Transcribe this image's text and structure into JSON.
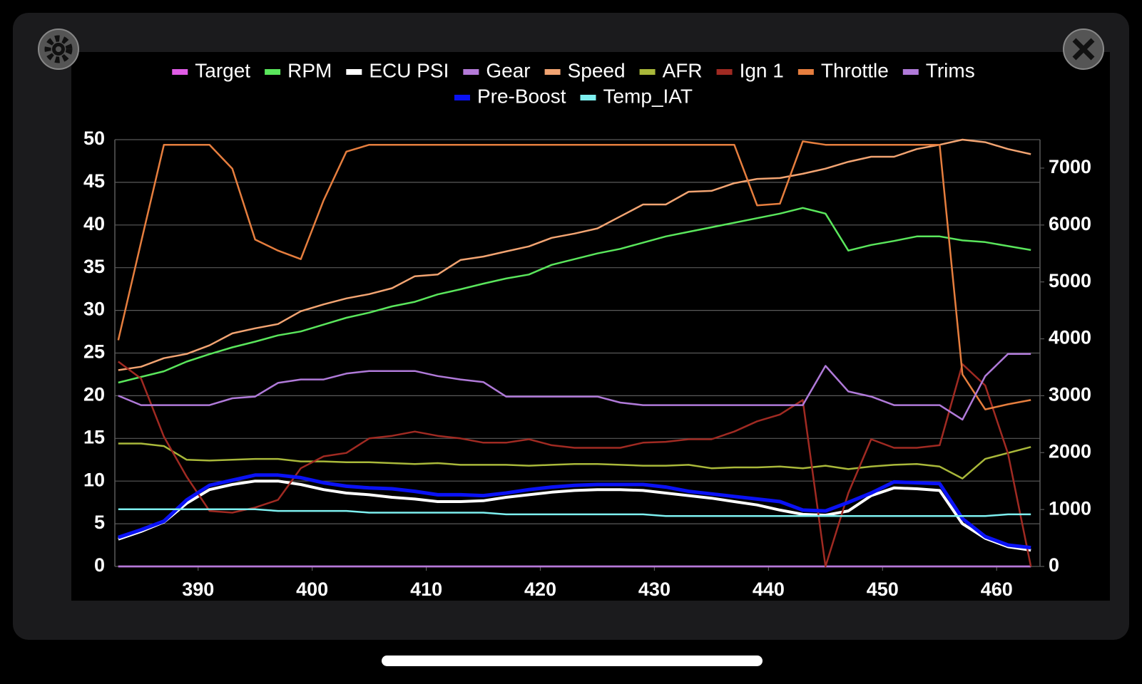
{
  "chart_data": {
    "type": "line",
    "x": [
      383,
      385,
      387,
      389,
      391,
      393,
      395,
      397,
      399,
      401,
      403,
      405,
      407,
      409,
      411,
      413,
      415,
      417,
      419,
      421,
      423,
      425,
      427,
      429,
      431,
      433,
      435,
      437,
      439,
      441,
      443,
      445,
      447,
      449,
      451,
      453,
      455,
      457,
      459,
      461,
      463
    ],
    "xlim": [
      382.7,
      463.8
    ],
    "xticks": [
      390,
      400,
      410,
      420,
      430,
      440,
      450,
      460
    ],
    "ylim": [
      0,
      50
    ],
    "yticks": [
      0,
      5,
      10,
      15,
      20,
      25,
      30,
      35,
      40,
      45,
      50
    ],
    "y2lim": [
      0,
      7500
    ],
    "y2ticks": [
      0,
      1000,
      2000,
      3000,
      4000,
      5000,
      6000,
      7000
    ],
    "grid": true,
    "legend": "top",
    "series": [
      {
        "name": "Target",
        "color": "#e05ce6",
        "values": [
          0,
          0,
          0,
          0,
          0,
          0,
          0,
          0,
          0,
          0,
          0,
          0,
          0,
          0,
          0,
          0,
          0,
          0,
          0,
          0,
          0,
          0,
          0,
          0,
          0,
          0,
          0,
          0,
          0,
          0,
          0,
          0,
          0,
          0,
          0,
          0,
          0,
          0,
          0,
          0,
          0
        ]
      },
      {
        "name": "RPM",
        "color": "#5ae65c",
        "axis": "y2",
        "values": [
          3230,
          3330,
          3430,
          3600,
          3730,
          3850,
          3950,
          4060,
          4130,
          4250,
          4370,
          4460,
          4570,
          4650,
          4780,
          4870,
          4970,
          5060,
          5130,
          5300,
          5400,
          5500,
          5580,
          5690,
          5800,
          5880,
          5960,
          6040,
          6120,
          6200,
          6300,
          6200,
          5550,
          5650,
          5720,
          5800,
          5800,
          5730,
          5700,
          5630,
          5560
        ]
      },
      {
        "name": "ECU PSI",
        "color": "#ffffff",
        "values": [
          3.2,
          4.1,
          5.2,
          7.4,
          9.0,
          9.6,
          10.0,
          10.0,
          9.6,
          9.0,
          8.6,
          8.4,
          8.1,
          7.9,
          7.6,
          7.6,
          7.7,
          8.1,
          8.4,
          8.7,
          8.9,
          9.0,
          9.0,
          8.9,
          8.6,
          8.3,
          8.0,
          7.6,
          7.2,
          6.6,
          6.1,
          6.0,
          6.5,
          8.3,
          9.2,
          9.1,
          8.9,
          5.0,
          3.3,
          2.3,
          1.9
        ]
      },
      {
        "name": "Gear",
        "color": "#b47ad8",
        "values": [
          0,
          0,
          0,
          0,
          0,
          0,
          0,
          0,
          0,
          0,
          0,
          0,
          0,
          0,
          0,
          0,
          0,
          0,
          0,
          0,
          0,
          0,
          0,
          0,
          0,
          0,
          0,
          0,
          0,
          0,
          0,
          0,
          0,
          0,
          0,
          0,
          0,
          0,
          0,
          0,
          0
        ]
      },
      {
        "name": "Speed",
        "color": "#f2a472",
        "values": [
          23,
          23.4,
          24.4,
          24.9,
          25.9,
          27.3,
          27.9,
          28.4,
          29.9,
          30.7,
          31.4,
          31.9,
          32.6,
          34,
          34.2,
          35.9,
          36.3,
          36.9,
          37.5,
          38.5,
          39,
          39.6,
          41,
          42.4,
          42.4,
          43.9,
          44,
          44.9,
          45.4,
          45.5,
          46,
          46.6,
          47.4,
          48,
          48,
          48.9,
          49.4,
          50,
          49.7,
          48.9,
          48.3
        ]
      },
      {
        "name": "AFR",
        "color": "#a9b83a",
        "values": [
          14.4,
          14.4,
          14.1,
          12.5,
          12.4,
          12.5,
          12.6,
          12.6,
          12.3,
          12.3,
          12.2,
          12.2,
          12.1,
          12.0,
          12.1,
          11.9,
          11.9,
          11.9,
          11.8,
          11.9,
          12.0,
          12.0,
          11.9,
          11.8,
          11.8,
          11.9,
          11.5,
          11.6,
          11.6,
          11.7,
          11.5,
          11.8,
          11.4,
          11.7,
          11.9,
          12.0,
          11.7,
          10.3,
          12.6,
          13.3,
          14
        ]
      },
      {
        "name": "Ign 1",
        "color": "#a02a22",
        "values": [
          24.0,
          22,
          15.2,
          10.5,
          6.5,
          6.3,
          6.9,
          7.8,
          11.5,
          12.9,
          13.3,
          15.0,
          15.3,
          15.8,
          15.3,
          15.0,
          14.5,
          14.5,
          14.9,
          14.2,
          13.9,
          13.9,
          13.9,
          14.5,
          14.6,
          14.9,
          14.9,
          15.8,
          17.0,
          17.8,
          19.5,
          0,
          8.6,
          14.9,
          13.9,
          13.9,
          14.2,
          23.7,
          21.2,
          13.2,
          0
        ]
      },
      {
        "name": "Throttle",
        "color": "#e67e3e",
        "values": [
          26.5,
          38,
          49.4,
          49.4,
          49.4,
          46.6,
          38.3,
          37,
          36,
          42.9,
          48.6,
          49.4,
          49.4,
          49.4,
          49.4,
          49.4,
          49.4,
          49.4,
          49.4,
          49.4,
          49.4,
          49.4,
          49.4,
          49.4,
          49.4,
          49.4,
          49.4,
          49.4,
          42.3,
          42.5,
          49.8,
          49.4,
          49.4,
          49.4,
          49.4,
          49.4,
          49.4,
          22.5,
          18.4,
          19,
          19.5
        ]
      },
      {
        "name": "Trims",
        "color": "#b07ad9",
        "values": [
          20.0,
          18.9,
          18.9,
          18.9,
          18.9,
          19.7,
          19.9,
          21.5,
          21.9,
          21.9,
          22.6,
          22.9,
          22.9,
          22.9,
          22.3,
          21.9,
          21.6,
          19.9,
          19.9,
          19.9,
          19.9,
          19.9,
          19.2,
          18.9,
          18.9,
          18.9,
          18.9,
          18.9,
          18.9,
          18.9,
          18.9,
          23.5,
          20.5,
          19.9,
          18.9,
          18.9,
          18.9,
          17.2,
          22.3,
          24.9,
          24.9
        ]
      },
      {
        "name": "Pre-Boost",
        "color": "#0a12f5",
        "values": [
          3.4,
          4.3,
          5.3,
          7.8,
          9.5,
          10.1,
          10.7,
          10.7,
          10.4,
          9.8,
          9.4,
          9.2,
          9.1,
          8.8,
          8.4,
          8.4,
          8.3,
          8.6,
          9.0,
          9.3,
          9.5,
          9.6,
          9.6,
          9.6,
          9.3,
          8.8,
          8.5,
          8.2,
          7.9,
          7.6,
          6.6,
          6.5,
          7.5,
          8.6,
          9.9,
          9.8,
          9.7,
          5.6,
          3.5,
          2.5,
          2.2
        ]
      },
      {
        "name": "Temp_IAT",
        "color": "#7ef0f0",
        "values": [
          6.7,
          6.7,
          6.7,
          6.7,
          6.7,
          6.7,
          6.7,
          6.5,
          6.5,
          6.5,
          6.5,
          6.3,
          6.3,
          6.3,
          6.3,
          6.3,
          6.3,
          6.1,
          6.1,
          6.1,
          6.1,
          6.1,
          6.1,
          6.1,
          5.9,
          5.9,
          5.9,
          5.9,
          5.9,
          5.9,
          5.9,
          5.9,
          5.9,
          5.9,
          5.9,
          5.9,
          5.9,
          5.9,
          5.9,
          6.1,
          6.1
        ]
      }
    ]
  }
}
